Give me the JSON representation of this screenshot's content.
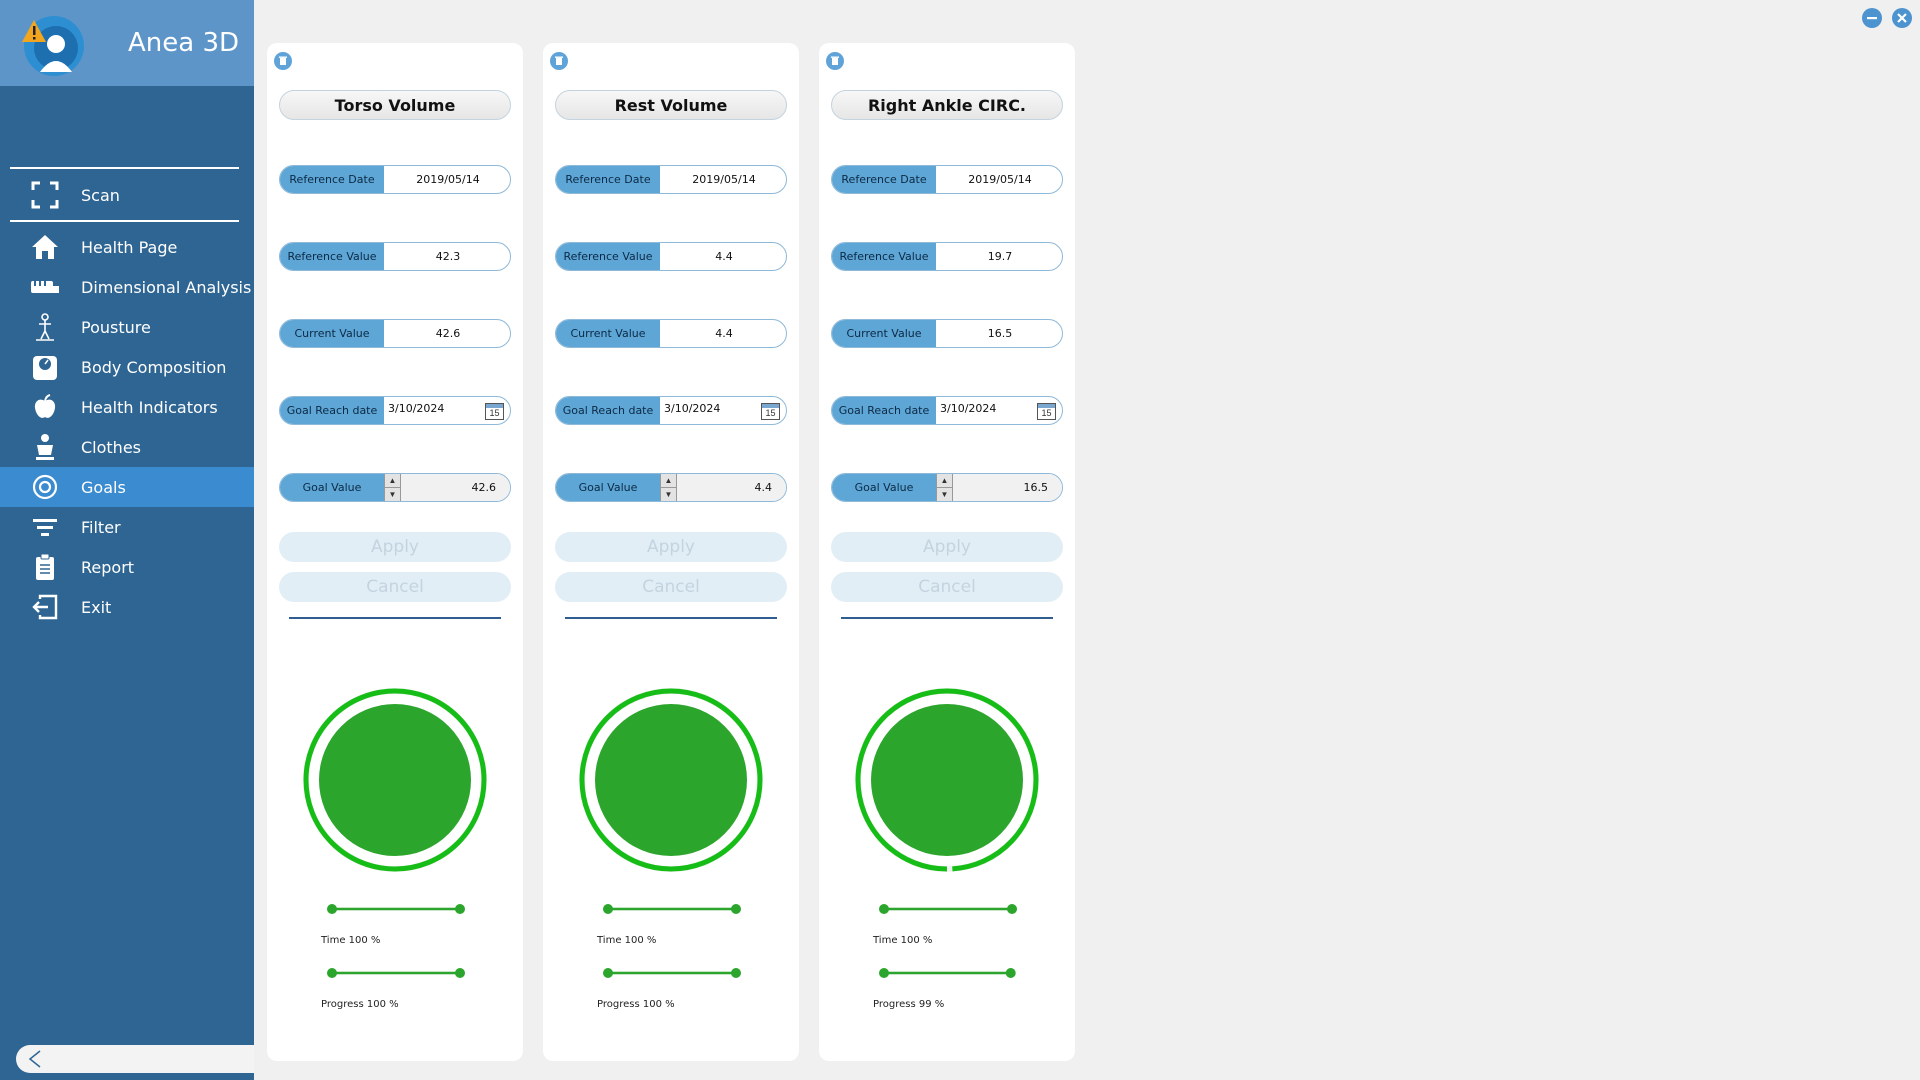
{
  "app": {
    "title": "Anea 3D"
  },
  "sidebar": {
    "items": [
      {
        "key": "scan",
        "label": "Scan",
        "icon": "scan-icon",
        "active": false
      },
      {
        "key": "health-page",
        "label": "Health Page",
        "icon": "home-icon",
        "active": false
      },
      {
        "key": "dimensional-analysis",
        "label": "Dimensional Analysis",
        "icon": "ruler-icon",
        "active": false
      },
      {
        "key": "pousture",
        "label": "Pousture",
        "icon": "posture-icon",
        "active": false
      },
      {
        "key": "body-composition",
        "label": "Body Composition",
        "icon": "scale-icon",
        "active": false
      },
      {
        "key": "health-indicators",
        "label": "Health Indicators",
        "icon": "apple-icon",
        "active": false
      },
      {
        "key": "clothes",
        "label": "Clothes",
        "icon": "clothes-icon",
        "active": false
      },
      {
        "key": "goals",
        "label": "Goals",
        "icon": "target-icon",
        "active": true
      },
      {
        "key": "filter",
        "label": "Filter",
        "icon": "filter-icon",
        "active": false
      },
      {
        "key": "report",
        "label": "Report",
        "icon": "clipboard-icon",
        "active": false
      },
      {
        "key": "exit",
        "label": "Exit",
        "icon": "exit-icon",
        "active": false
      }
    ]
  },
  "labels": {
    "reference_date": "Reference Date",
    "reference_value": "Reference Value",
    "current_value": "Current Value",
    "goal_reach_date": "Goal Reach date",
    "goal_value": "Goal Value",
    "apply": "Apply",
    "cancel": "Cancel",
    "calendar_day": "15"
  },
  "colors": {
    "sidebar": "#2f6593",
    "sidebar_header": "#5d95c9",
    "active": "#3a8bd0",
    "accent": "#5ea6d6",
    "progress_green": "#2ca52c",
    "ring_green": "#16bd16"
  },
  "cards": [
    {
      "title": "Torso Volume",
      "reference_date": "2019/05/14",
      "reference_value": "42.3",
      "current_value": "42.6",
      "goal_reach_date": "3/10/2024",
      "goal_value": "42.6",
      "time_label": "Time 100 %",
      "progress_label": "Progress 100 %",
      "time_pct": 100,
      "progress_pct": 100
    },
    {
      "title": "Rest Volume",
      "reference_date": "2019/05/14",
      "reference_value": "4.4",
      "current_value": "4.4",
      "goal_reach_date": "3/10/2024",
      "goal_value": "4.4",
      "time_label": "Time 100 %",
      "progress_label": "Progress 100 %",
      "time_pct": 100,
      "progress_pct": 100
    },
    {
      "title": "Right Ankle CIRC.",
      "reference_date": "2019/05/14",
      "reference_value": "19.7",
      "current_value": "16.5",
      "goal_reach_date": "3/10/2024",
      "goal_value": "16.5",
      "time_label": "Time 100 %",
      "progress_label": "Progress 99 %",
      "time_pct": 100,
      "progress_pct": 99
    }
  ]
}
